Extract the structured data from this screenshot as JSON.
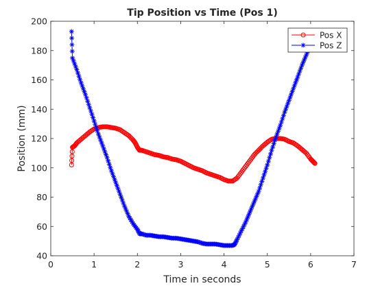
{
  "chart_data": {
    "type": "line",
    "title": "Tip Position vs Time (Pos 1)",
    "xlabel": "Time in seconds",
    "ylabel": "Position (mm)",
    "xlim": [
      0,
      7
    ],
    "ylim": [
      40,
      200
    ],
    "x_ticks": [
      0,
      1,
      2,
      3,
      4,
      5,
      6,
      7
    ],
    "y_ticks": [
      40,
      60,
      80,
      100,
      120,
      140,
      160,
      180,
      200
    ],
    "grid": false,
    "legend_position": "top-right",
    "series": [
      {
        "name": "Pos X",
        "color": "#ff0000",
        "marker": "circle",
        "x": [
          0.48,
          0.5,
          0.55,
          0.6,
          0.7,
          0.8,
          0.9,
          1.0,
          1.1,
          1.2,
          1.3,
          1.4,
          1.5,
          1.6,
          1.7,
          1.8,
          1.9,
          1.95,
          2.0,
          2.05,
          2.1,
          2.2,
          2.3,
          2.4,
          2.5,
          2.6,
          2.7,
          2.8,
          2.9,
          3.0,
          3.1,
          3.2,
          3.3,
          3.4,
          3.5,
          3.6,
          3.7,
          3.8,
          3.9,
          4.0,
          4.1,
          4.2,
          4.3,
          4.4,
          4.5,
          4.6,
          4.7,
          4.8,
          4.9,
          5.0,
          5.1,
          5.2,
          5.3,
          5.4,
          5.5,
          5.6,
          5.7,
          5.8,
          5.9,
          6.0,
          6.05,
          6.1
        ],
        "y": [
          102,
          114,
          115,
          117,
          119.5,
          122,
          124.5,
          126.5,
          127.5,
          128,
          128,
          127.5,
          127,
          126,
          124,
          122,
          119,
          117,
          114,
          112,
          112,
          111,
          110,
          109,
          108.5,
          107.5,
          107,
          106,
          105.5,
          104.5,
          103,
          101.5,
          100,
          99,
          98,
          96.5,
          95.5,
          94.5,
          93.5,
          92,
          91,
          91,
          93,
          97,
          101,
          105,
          109,
          112,
          115,
          117.5,
          119.5,
          120,
          120,
          119.5,
          118,
          117,
          115,
          112.5,
          110,
          106,
          104.5,
          103
        ]
      },
      {
        "name": "Pos Z",
        "color": "#0000ff",
        "marker": "asterisk",
        "x": [
          0.48,
          0.5,
          0.6,
          0.7,
          0.8,
          0.9,
          1.0,
          1.1,
          1.2,
          1.3,
          1.4,
          1.5,
          1.6,
          1.7,
          1.8,
          1.9,
          2.0,
          2.05,
          2.1,
          2.2,
          2.3,
          2.4,
          2.5,
          2.6,
          2.7,
          2.8,
          2.9,
          3.0,
          3.1,
          3.2,
          3.3,
          3.4,
          3.5,
          3.6,
          3.7,
          3.8,
          3.9,
          4.0,
          4.1,
          4.2,
          4.25,
          4.3,
          4.4,
          4.5,
          4.6,
          4.7,
          4.8,
          4.9,
          5.0,
          5.1,
          5.2,
          5.3,
          5.4,
          5.5,
          5.6,
          5.7,
          5.8,
          5.9,
          6.0
        ],
        "y": [
          193,
          175,
          167,
          158,
          150,
          141,
          132,
          123,
          115,
          107,
          98,
          90,
          82,
          74,
          67,
          62,
          58,
          55,
          55,
          54,
          54,
          53.5,
          53,
          53,
          52.5,
          52,
          52,
          51.5,
          51,
          50.5,
          50,
          49.5,
          48.5,
          48,
          48,
          48,
          47.5,
          47,
          47,
          47,
          48,
          51,
          57,
          63,
          70,
          77,
          84,
          93,
          102,
          112,
          121,
          129,
          138,
          146,
          154,
          162,
          170,
          177,
          184
        ]
      }
    ]
  }
}
